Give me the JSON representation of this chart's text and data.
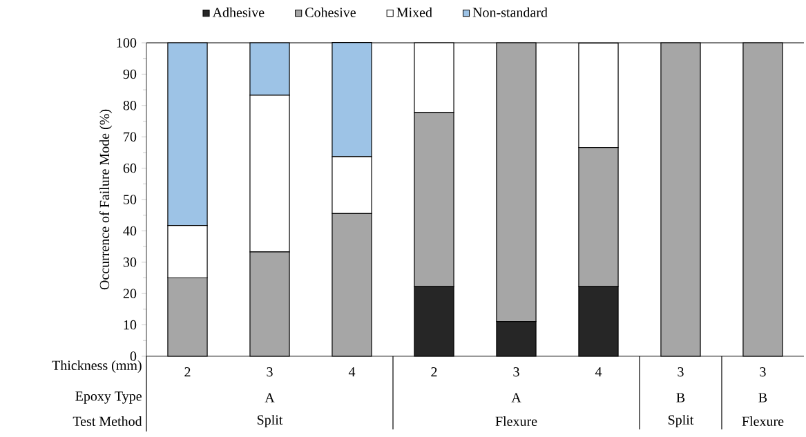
{
  "chart_data": {
    "type": "bar",
    "stacked": true,
    "ylabel": "Occurrence of Failure Mode (%)",
    "categories": [
      "2",
      "3",
      "4",
      "2",
      "3",
      "4",
      "3",
      "3"
    ],
    "series": [
      {
        "name": "Adhesive",
        "color": "#262626",
        "values": [
          0,
          0,
          0,
          22.2,
          11.1,
          22.2,
          0,
          0
        ]
      },
      {
        "name": "Cohesive",
        "color": "#a6a6a6",
        "values": [
          25,
          33.3,
          45.5,
          55.6,
          88.9,
          44.4,
          100,
          100
        ]
      },
      {
        "name": "Mixed",
        "color": "#ffffff",
        "values": [
          16.7,
          50,
          18.2,
          22.2,
          0,
          33.3,
          0,
          0
        ]
      },
      {
        "name": "Non-standard",
        "color": "#9dc3e6",
        "values": [
          58.3,
          16.7,
          36.4,
          0,
          0,
          0,
          0,
          0
        ]
      }
    ],
    "ylim": [
      0,
      100
    ],
    "yticks": [
      0,
      10,
      20,
      30,
      40,
      50,
      60,
      70,
      80,
      90,
      100
    ],
    "legend": "top",
    "grid": false,
    "annotations": [
      "Thickness (mm)",
      "Epoxy Type",
      "Test Method",
      "A",
      "A",
      "B",
      "B",
      "Split",
      "Flexure",
      "Split",
      "Flexure"
    ]
  }
}
